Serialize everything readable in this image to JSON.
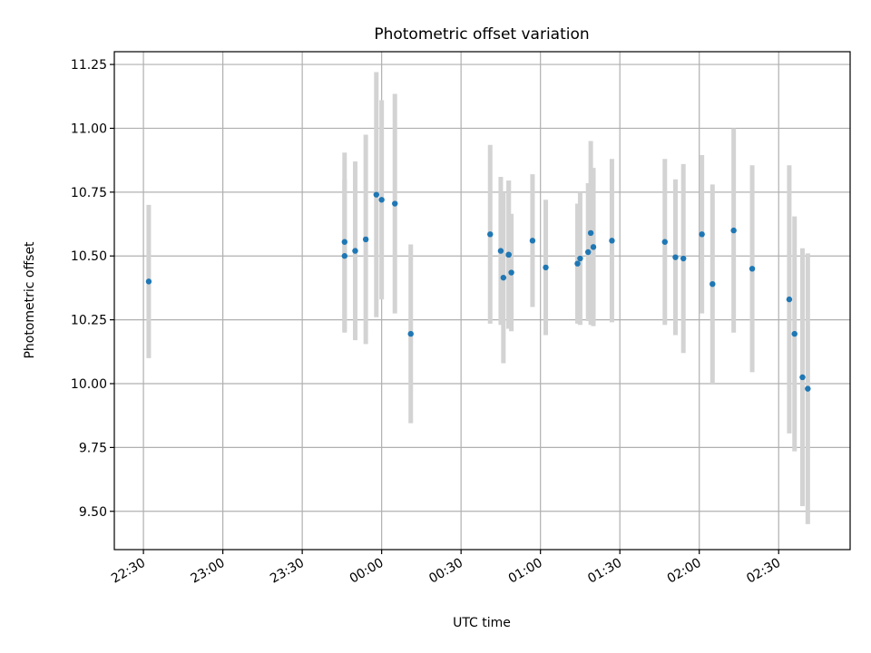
{
  "chart_data": {
    "type": "scatter",
    "title": "Photometric offset variation",
    "xlabel": "UTC time",
    "ylabel": "Photometric offset",
    "xlim": [
      "22:19",
      "02:57"
    ],
    "ylim": [
      9.35,
      11.3
    ],
    "grid": true,
    "x_ticks": [
      "22:30",
      "23:00",
      "23:30",
      "00:00",
      "00:30",
      "01:00",
      "01:30",
      "02:00",
      "02:30"
    ],
    "y_ticks": [
      "9.50",
      "9.75",
      "10.00",
      "10.25",
      "10.50",
      "10.75",
      "11.00",
      "11.25"
    ],
    "colors": {
      "point": "#1f77b4",
      "errorbar": "#d3d3d3",
      "grid": "#b0b0b0"
    },
    "points": [
      {
        "t": "22:32",
        "y": 10.4,
        "err": 0.3
      },
      {
        "t": "23:46",
        "y": 10.5,
        "err": 0.3
      },
      {
        "t": "23:46",
        "y": 10.555,
        "err": 0.35
      },
      {
        "t": "23:50",
        "y": 10.52,
        "err": 0.35
      },
      {
        "t": "23:54",
        "y": 10.565,
        "err": 0.41
      },
      {
        "t": "23:58",
        "y": 10.74,
        "err": 0.48
      },
      {
        "t": "24:00",
        "y": 10.72,
        "err": 0.39
      },
      {
        "t": "24:05",
        "y": 10.705,
        "err": 0.43
      },
      {
        "t": "24:11",
        "y": 10.195,
        "err": 0.35
      },
      {
        "t": "24:41",
        "y": 10.585,
        "err": 0.35
      },
      {
        "t": "24:45",
        "y": 10.52,
        "err": 0.29
      },
      {
        "t": "24:46",
        "y": 10.415,
        "err": 0.335
      },
      {
        "t": "24:48",
        "y": 10.505,
        "err": 0.29
      },
      {
        "t": "24:48",
        "y": 10.505,
        "err": 0.29
      },
      {
        "t": "24:49",
        "y": 10.435,
        "err": 0.23
      },
      {
        "t": "24:57",
        "y": 10.56,
        "err": 0.26
      },
      {
        "t": "25:02",
        "y": 10.455,
        "err": 0.265
      },
      {
        "t": "25:14",
        "y": 10.47,
        "err": 0.235
      },
      {
        "t": "25:15",
        "y": 10.49,
        "err": 0.26
      },
      {
        "t": "25:18",
        "y": 10.515,
        "err": 0.27
      },
      {
        "t": "25:19",
        "y": 10.59,
        "err": 0.36
      },
      {
        "t": "25:20",
        "y": 10.535,
        "err": 0.31
      },
      {
        "t": "25:27",
        "y": 10.56,
        "err": 0.32
      },
      {
        "t": "25:47",
        "y": 10.555,
        "err": 0.325
      },
      {
        "t": "25:51",
        "y": 10.495,
        "err": 0.305
      },
      {
        "t": "25:54",
        "y": 10.49,
        "err": 0.37
      },
      {
        "t": "26:01",
        "y": 10.585,
        "err": 0.31
      },
      {
        "t": "26:05",
        "y": 10.39,
        "err": 0.39
      },
      {
        "t": "26:13",
        "y": 10.6,
        "err": 0.4
      },
      {
        "t": "26:20",
        "y": 10.45,
        "err": 0.405
      },
      {
        "t": "26:34",
        "y": 10.33,
        "err": 0.525
      },
      {
        "t": "26:36",
        "y": 10.195,
        "err": 0.46
      },
      {
        "t": "26:39",
        "y": 10.025,
        "err": 0.505
      },
      {
        "t": "26:41",
        "y": 9.98,
        "err": 0.53
      }
    ]
  }
}
